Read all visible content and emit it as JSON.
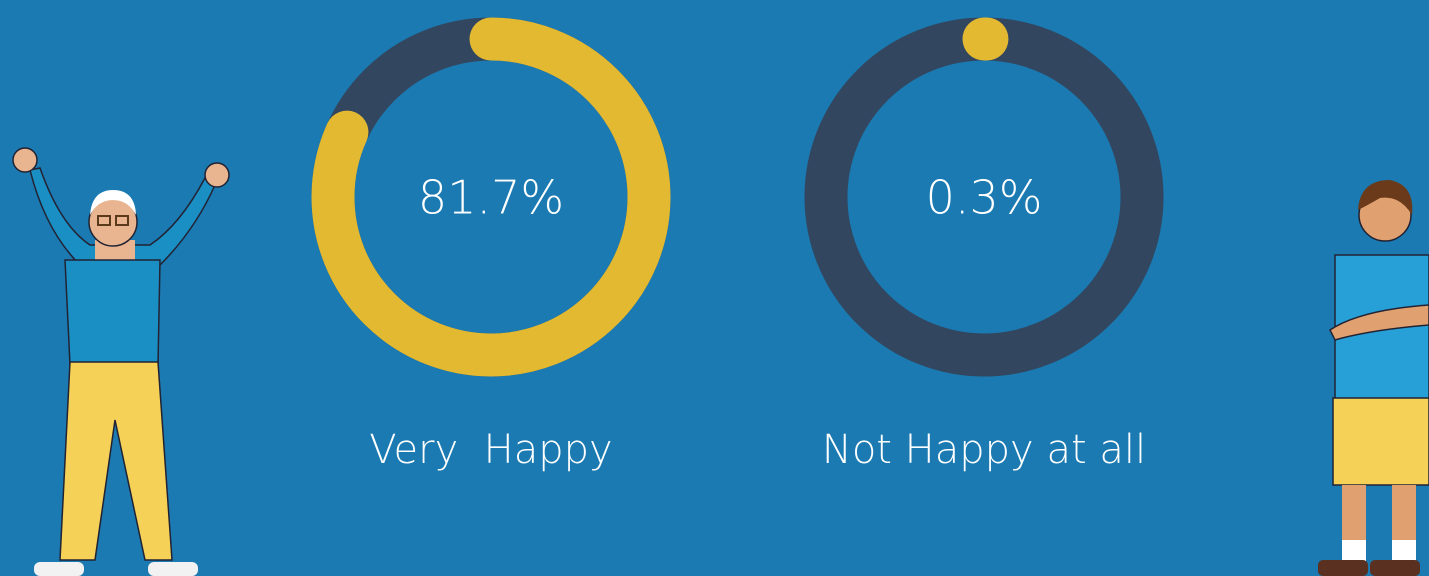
{
  "chart_data": [
    {
      "type": "donut",
      "values": [
        81.7
      ],
      "value_labels": [
        "81.7%"
      ],
      "label": "Very  Happy",
      "color": "#e3b932",
      "track_color": "#32465f",
      "ylim": [
        0,
        100
      ]
    },
    {
      "type": "donut",
      "values": [
        0.3
      ],
      "value_labels": [
        "0.3%"
      ],
      "label": "Not Happy at all",
      "color": "#e3b932",
      "track_color": "#32465f",
      "ylim": [
        0,
        100
      ]
    }
  ]
}
